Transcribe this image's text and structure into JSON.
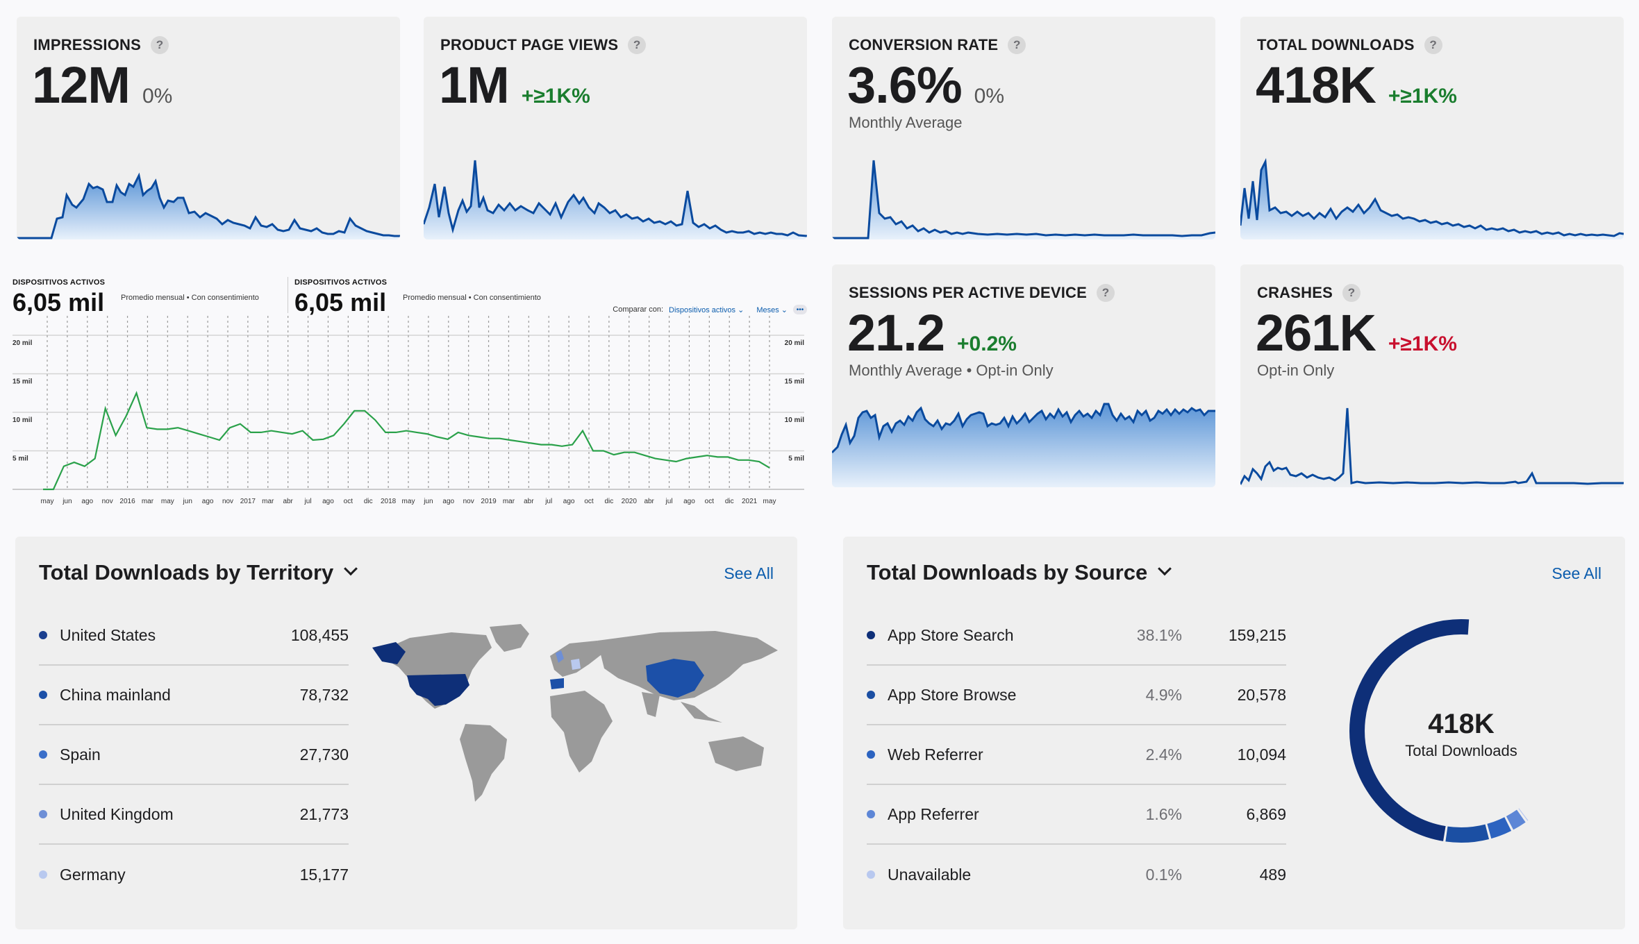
{
  "metrics": {
    "impressions": {
      "title": "IMPRESSIONS",
      "help": "?",
      "value": "12M",
      "delta": "0%",
      "delta_tone": "neutral"
    },
    "product_page_views": {
      "title": "PRODUCT PAGE VIEWS",
      "help": "?",
      "value": "1M",
      "delta": "+≥1K%",
      "delta_tone": "green"
    },
    "conversion_rate": {
      "title": "CONVERSION RATE",
      "help": "?",
      "value": "3.6%",
      "delta": "0%",
      "delta_tone": "neutral",
      "sub": "Monthly Average"
    },
    "total_downloads": {
      "title": "TOTAL DOWNLOADS",
      "help": "?",
      "value": "418K",
      "delta": "+≥1K%",
      "delta_tone": "green"
    },
    "sessions": {
      "title": "SESSIONS PER ACTIVE DEVICE",
      "help": "?",
      "value": "21.2",
      "delta": "+0.2%",
      "delta_tone": "green",
      "sub": "Monthly Average • Opt-in Only"
    },
    "crashes": {
      "title": "CRASHES",
      "help": "?",
      "value": "261K",
      "delta": "+≥1K%",
      "delta_tone": "red",
      "sub": "Opt-in Only"
    }
  },
  "active_devices": {
    "left": {
      "label": "DISPOSITIVOS ACTIVOS",
      "value": "6,05 mil",
      "sub": "Promedio mensual • Con consentimiento"
    },
    "right": {
      "label": "DISPOSITIVOS ACTIVOS",
      "value": "6,05 mil",
      "sub": "Promedio mensual • Con consentimiento"
    },
    "compare_label": "Comparar con:",
    "compare_value": "Dispositivos activos",
    "period": "Meses",
    "more": "•••"
  },
  "chart_data": {
    "type": "line",
    "title": "",
    "ylim": [
      0,
      20
    ],
    "y_ticks": [
      "20 mil",
      "15 mil",
      "10 mil",
      "5 mil"
    ],
    "x_labels": [
      "may",
      "jun",
      "ago",
      "nov",
      "2016",
      "mar",
      "may",
      "jun",
      "ago",
      "nov",
      "2017",
      "mar",
      "abr",
      "jul",
      "ago",
      "oct",
      "dic",
      "2018",
      "may",
      "jun",
      "ago",
      "nov",
      "2019",
      "mar",
      "abr",
      "jul",
      "ago",
      "oct",
      "dic",
      "2020",
      "abr",
      "jul",
      "ago",
      "oct",
      "dic",
      "2021",
      "may"
    ],
    "series": [
      {
        "color": "#2aa14a",
        "values": [
          0,
          0,
          3,
          3.5,
          3,
          4,
          10.5,
          7,
          9.5,
          12.5,
          8,
          7.8,
          7.8,
          8,
          7.6,
          7.2,
          6.8,
          6.4,
          8,
          8.5,
          7.4,
          7.4,
          7.6,
          7.4,
          7.2,
          7.6,
          6.4,
          6.5,
          7,
          8.5,
          10.2,
          10.2,
          9,
          7.4,
          7.4,
          7.6,
          7.4,
          7.2,
          6.8,
          6.5,
          7.4,
          7,
          6.8,
          6.6,
          6.6,
          6.4,
          6.2,
          6,
          5.8,
          5.8,
          5.6,
          5.8,
          7.6,
          5,
          5,
          4.5,
          4.8,
          4.8,
          4.4,
          4,
          3.8,
          3.6,
          4,
          4.2,
          4.4,
          4.2,
          4.2,
          3.8,
          3.8,
          3.6,
          2.8
        ]
      }
    ]
  },
  "territory": {
    "title": "Total Downloads by Territory",
    "see_all": "See All",
    "rows": [
      {
        "name": "United States",
        "value": "108,455",
        "color": "#1b3f8f"
      },
      {
        "name": "China mainland",
        "value": "78,732",
        "color": "#1c50a8"
      },
      {
        "name": "Spain",
        "value": "27,730",
        "color": "#3b6fc9"
      },
      {
        "name": "United Kingdom",
        "value": "21,773",
        "color": "#6e8fd6"
      },
      {
        "name": "Germany",
        "value": "15,177",
        "color": "#b9c9ef"
      }
    ]
  },
  "source": {
    "title": "Total Downloads by Source",
    "see_all": "See All",
    "rows": [
      {
        "name": "App Store Search",
        "pct": "38.1%",
        "value": "159,215",
        "color": "#0e2f78"
      },
      {
        "name": "App Store Browse",
        "pct": "4.9%",
        "value": "20,578",
        "color": "#1b4fa3"
      },
      {
        "name": "Web Referrer",
        "pct": "2.4%",
        "value": "10,094",
        "color": "#2c63c0"
      },
      {
        "name": "App Referrer",
        "pct": "1.6%",
        "value": "6,869",
        "color": "#5d86d6"
      },
      {
        "name": "Unavailable",
        "pct": "0.1%",
        "value": "489",
        "color": "#b8c8ef"
      }
    ],
    "donut_value": "418K",
    "donut_label": "Total Downloads"
  }
}
